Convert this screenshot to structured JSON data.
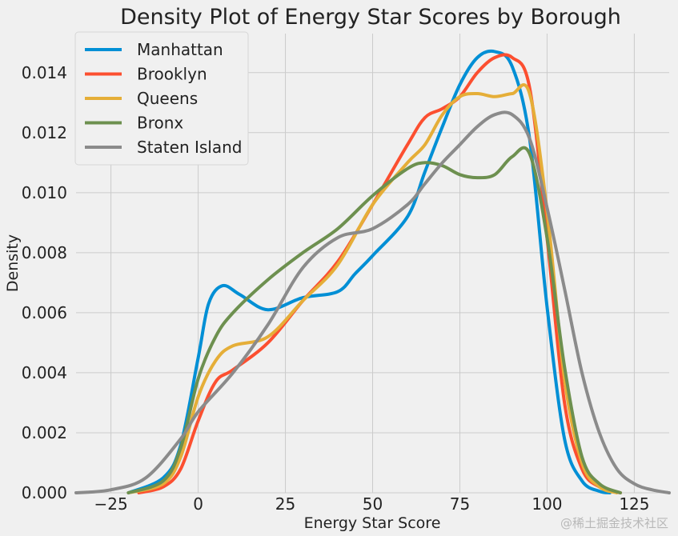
{
  "chart_data": {
    "type": "line",
    "title": "Density Plot of Energy Star Scores by Borough",
    "xlabel": "Energy Star Score",
    "ylabel": "Density",
    "xlim": [
      -35,
      135
    ],
    "ylim": [
      0,
      0.0153
    ],
    "xticks": [
      -25,
      0,
      25,
      50,
      75,
      100,
      125
    ],
    "yticks": [
      0,
      0.002,
      0.004,
      0.006,
      0.008,
      0.01,
      0.012,
      0.014
    ],
    "ytick_labels": [
      "0.000",
      "0.002",
      "0.004",
      "0.006",
      "0.008",
      "0.010",
      "0.012",
      "0.014"
    ],
    "grid": true,
    "legend_position": "upper-left",
    "series": [
      {
        "name": "Manhattan",
        "color": "#008fd5",
        "x": [
          -20,
          -10,
          -5,
          0,
          3,
          7,
          12,
          20,
          30,
          40,
          45,
          50,
          60,
          65,
          70,
          75,
          80,
          85,
          90,
          95,
          100,
          105,
          110,
          115,
          118
        ],
        "y": [
          0,
          0.0005,
          0.0016,
          0.0045,
          0.0063,
          0.0069,
          0.0066,
          0.0061,
          0.0065,
          0.0067,
          0.0073,
          0.0079,
          0.0092,
          0.0107,
          0.0122,
          0.0136,
          0.0145,
          0.0147,
          0.0142,
          0.0118,
          0.0062,
          0.0018,
          0.0004,
          5e-05,
          0
        ]
      },
      {
        "name": "Brooklyn",
        "color": "#fc4f30",
        "x": [
          -17,
          -10,
          -5,
          0,
          5,
          10,
          20,
          30,
          40,
          50,
          60,
          65,
          70,
          75,
          80,
          85,
          90,
          95,
          100,
          105,
          110,
          115,
          121
        ],
        "y": [
          0,
          0.0002,
          0.0008,
          0.0024,
          0.0037,
          0.0041,
          0.005,
          0.0064,
          0.0077,
          0.0096,
          0.0116,
          0.0125,
          0.0128,
          0.0132,
          0.014,
          0.0145,
          0.0145,
          0.0135,
          0.0085,
          0.003,
          0.0008,
          0.0002,
          0
        ]
      },
      {
        "name": "Queens",
        "color": "#e5ae38",
        "x": [
          -20,
          -10,
          -5,
          0,
          5,
          10,
          20,
          30,
          40,
          50,
          60,
          65,
          70,
          75,
          80,
          85,
          90,
          95,
          100,
          105,
          110,
          115,
          120
        ],
        "y": [
          0,
          0.0003,
          0.0012,
          0.0032,
          0.0044,
          0.0049,
          0.0052,
          0.0064,
          0.0076,
          0.0096,
          0.011,
          0.0116,
          0.0126,
          0.0132,
          0.0133,
          0.0132,
          0.0133,
          0.0133,
          0.0094,
          0.0038,
          0.001,
          0.0002,
          0
        ]
      },
      {
        "name": "Bronx",
        "color": "#6d904f",
        "x": [
          -20,
          -10,
          -5,
          0,
          5,
          10,
          20,
          30,
          40,
          50,
          60,
          65,
          70,
          75,
          80,
          85,
          90,
          95,
          100,
          105,
          110,
          115,
          121
        ],
        "y": [
          0,
          0.0004,
          0.0015,
          0.0038,
          0.0052,
          0.006,
          0.0071,
          0.008,
          0.0088,
          0.0099,
          0.0108,
          0.011,
          0.0109,
          0.0106,
          0.0105,
          0.0106,
          0.0112,
          0.0113,
          0.0085,
          0.0042,
          0.0012,
          0.0003,
          0
        ]
      },
      {
        "name": "Staten Island",
        "color": "#8b8b8b",
        "x": [
          -35,
          -25,
          -15,
          -5,
          0,
          10,
          20,
          30,
          40,
          50,
          60,
          65,
          70,
          75,
          80,
          85,
          90,
          95,
          100,
          105,
          110,
          115,
          120,
          125,
          130,
          135
        ],
        "y": [
          0,
          0.0001,
          0.0005,
          0.0018,
          0.0027,
          0.004,
          0.0056,
          0.0075,
          0.0085,
          0.0088,
          0.0096,
          0.0103,
          0.011,
          0.0116,
          0.0122,
          0.0126,
          0.0126,
          0.0118,
          0.0095,
          0.0068,
          0.004,
          0.002,
          0.0008,
          0.0003,
          0.0001,
          0
        ]
      }
    ]
  },
  "watermark": "@稀土掘金技术社区"
}
